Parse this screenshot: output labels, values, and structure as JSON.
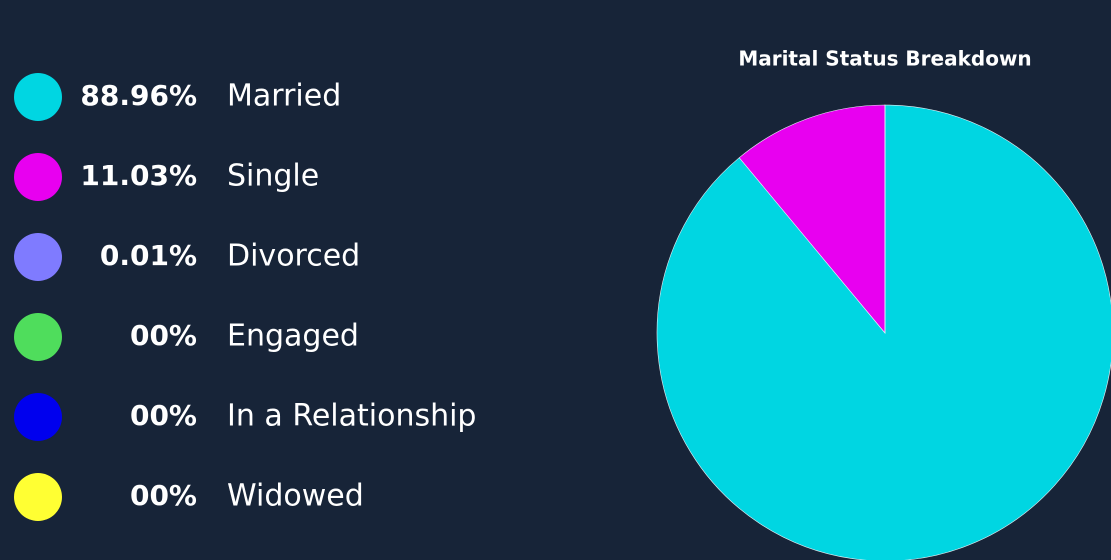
{
  "chart_data": {
    "type": "pie",
    "title": "Marital Status Breakdown",
    "categories": [
      "Married",
      "Single",
      "Divorced",
      "Engaged",
      "In a Relationship",
      "Widowed"
    ],
    "values": [
      88.96,
      11.03,
      0.01,
      0,
      0,
      0
    ],
    "value_labels": [
      "88.96%",
      "11.03%",
      "0.01%",
      "00%",
      "00%",
      "00%"
    ],
    "colors": [
      "#00d6e2",
      "#e800f0",
      "#7f7bff",
      "#4fdd5c",
      "#0000ee",
      "#ffff33"
    ]
  }
}
